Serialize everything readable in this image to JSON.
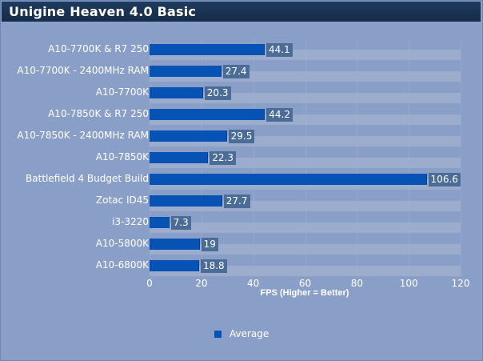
{
  "chart_data": {
    "type": "bar",
    "orientation": "horizontal",
    "title": "Unigine Heaven 4.0 Basic",
    "xlabel": "FPS (Higher = Better)",
    "ylabel": "",
    "xlim": [
      0,
      120
    ],
    "xticks": [
      0,
      20,
      40,
      60,
      80,
      100,
      120
    ],
    "grid": true,
    "legend_position": "bottom",
    "categories": [
      "A10-7700K & R7 250",
      "A10-7700K - 2400MHz RAM",
      "A10-7700K",
      "A10-7850K & R7 250",
      "A10-7850K - 2400MHz RAM",
      "A10-7850K",
      "Battlefield 4 Budget Build",
      "Zotac ID45",
      "i3-3220",
      "A10-5800K",
      "A10-6800K"
    ],
    "series": [
      {
        "name": "Average",
        "color": "#0752b5",
        "values": [
          44.1,
          27.4,
          20.3,
          44.2,
          29.5,
          22.3,
          106.6,
          27.7,
          7.3,
          19,
          18.8
        ]
      }
    ]
  },
  "labels": {
    "title": "Unigine Heaven 4.0 Basic",
    "xlabel": "FPS (Higher = Better)",
    "legend": "Average",
    "ticks": [
      "0",
      "20",
      "40",
      "60",
      "80",
      "100",
      "120"
    ],
    "rows": [
      {
        "name": "A10-7700K & R7 250",
        "value": "44.1"
      },
      {
        "name": "A10-7700K - 2400MHz RAM",
        "value": "27.4"
      },
      {
        "name": "A10-7700K",
        "value": "20.3"
      },
      {
        "name": "A10-7850K & R7 250",
        "value": "44.2"
      },
      {
        "name": "A10-7850K - 2400MHz RAM",
        "value": "29.5"
      },
      {
        "name": "A10-7850K",
        "value": "22.3"
      },
      {
        "name": "Battlefield 4 Budget Build",
        "value": "106.6"
      },
      {
        "name": "Zotac ID45",
        "value": "27.7"
      },
      {
        "name": "i3-3220",
        "value": "7.3"
      },
      {
        "name": "A10-5800K",
        "value": "19"
      },
      {
        "name": "A10-6800K",
        "value": "18.8"
      }
    ]
  }
}
